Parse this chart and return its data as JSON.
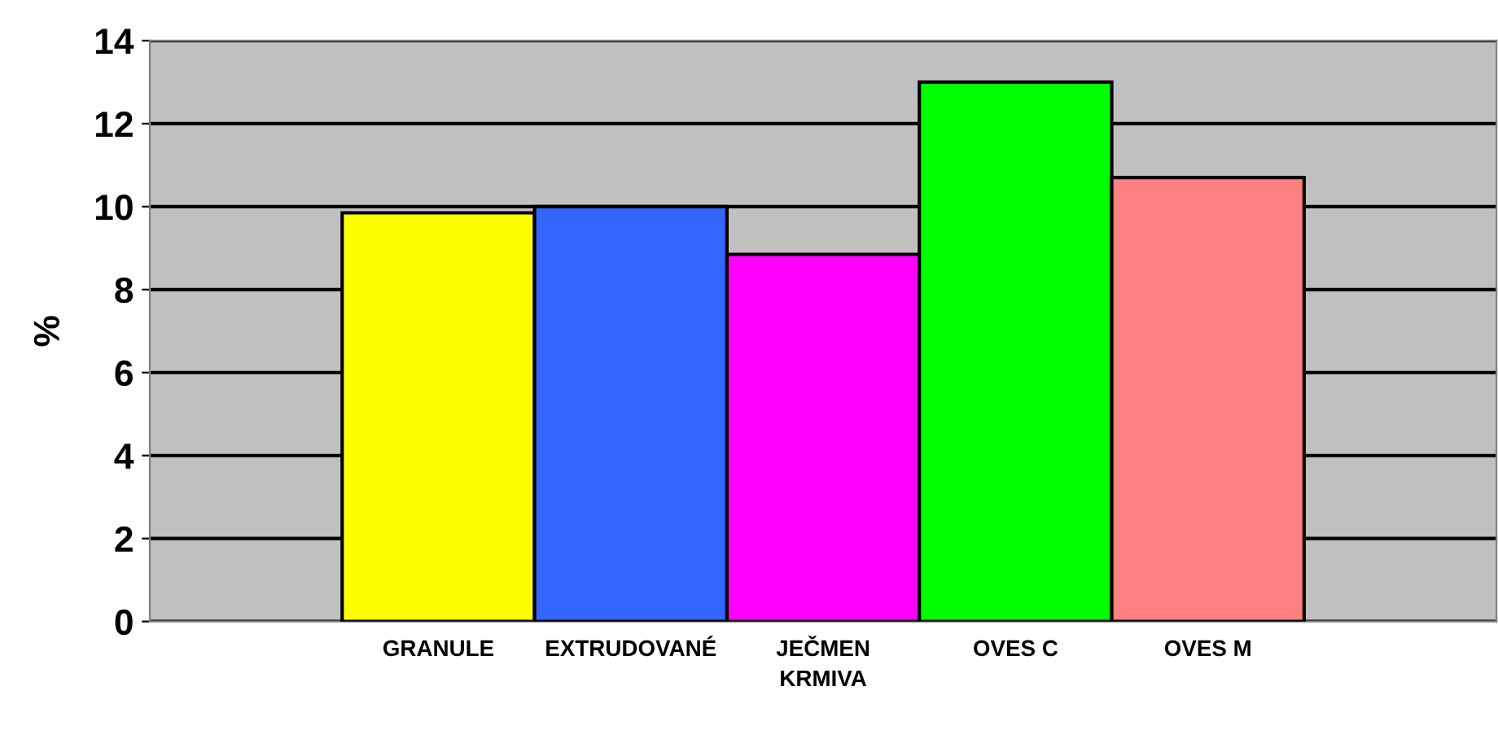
{
  "chart_data": {
    "type": "bar",
    "xlabel": "KRMIVA",
    "ylabel": "%",
    "categories": [
      null,
      "GRANULE",
      "EXTRUDOVANÉ",
      "JEČMEN",
      "OVES C",
      "OVES M",
      null
    ],
    "values": [
      null,
      9.85,
      10.0,
      8.85,
      13.0,
      10.7,
      null
    ],
    "colors": [
      "#ffffff",
      "#ffff00",
      "#3366ff",
      "#ff00ff",
      "#00ff00",
      "#ff8080",
      "#ffffff"
    ],
    "ylim": [
      0,
      14
    ],
    "yticks": [
      0,
      2,
      4,
      6,
      8,
      10,
      12,
      14
    ],
    "grid": "y",
    "legend": false
  }
}
